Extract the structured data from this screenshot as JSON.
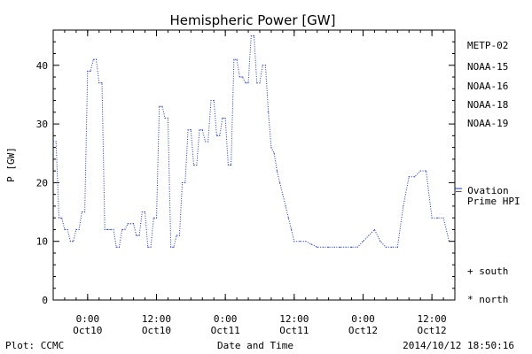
{
  "chart_data": {
    "type": "line",
    "title": "Hemispheric Power [GW]",
    "ylabel": "P [GW]",
    "xlabel": "Date and Time",
    "xlim": [
      "2014-10-09T18:00",
      "2014-10-12T16:00"
    ],
    "ylim": [
      0,
      46
    ],
    "y_ticks": [
      0,
      10,
      20,
      30,
      40
    ],
    "x_ticks": [
      {
        "t": "2014-10-10T00:00",
        "line1": "0:00",
        "line2": "Oct10"
      },
      {
        "t": "2014-10-10T12:00",
        "line1": "12:00",
        "line2": "Oct10"
      },
      {
        "t": "2014-10-11T00:00",
        "line1": "0:00",
        "line2": "Oct11"
      },
      {
        "t": "2014-10-11T12:00",
        "line1": "12:00",
        "line2": "Oct11"
      },
      {
        "t": "2014-10-12T00:00",
        "line1": "0:00",
        "line2": "Oct12"
      },
      {
        "t": "2014-10-12T12:00",
        "line1": "12:00",
        "line2": "Oct12"
      }
    ],
    "legend": {
      "placement": "right",
      "entries": [
        {
          "name": "METP-02",
          "color": "#000000"
        },
        {
          "name": "NOAA-15",
          "color": "#1a33c8"
        },
        {
          "name": "NOAA-16",
          "color": "#22b4d8"
        },
        {
          "name": "NOAA-18",
          "color": "#22cc77"
        },
        {
          "name": "NOAA-19",
          "color": "#ee9922"
        }
      ],
      "symbols": [
        {
          "label": "+ south"
        },
        {
          "label": "* north"
        }
      ]
    },
    "ovation": {
      "value": 19,
      "line1": "– Ovation",
      "line2": "Prime HPI",
      "color": "#1a33c8"
    },
    "series": [
      {
        "color": "#1a33c8",
        "x": [
          "2014-10-09T18:00",
          "2014-10-09T18:30",
          "2014-10-09T19:00",
          "2014-10-09T19:30",
          "2014-10-09T20:00",
          "2014-10-09T20:30",
          "2014-10-09T21:00",
          "2014-10-09T21:30",
          "2014-10-09T22:00",
          "2014-10-09T22:30",
          "2014-10-09T23:00",
          "2014-10-09T23:30",
          "2014-10-10T00:00",
          "2014-10-10T00:30",
          "2014-10-10T01:00",
          "2014-10-10T01:30",
          "2014-10-10T02:00",
          "2014-10-10T02:30",
          "2014-10-10T03:00",
          "2014-10-10T03:30",
          "2014-10-10T04:00",
          "2014-10-10T04:30",
          "2014-10-10T05:00",
          "2014-10-10T05:30",
          "2014-10-10T06:00",
          "2014-10-10T06:30",
          "2014-10-10T07:00",
          "2014-10-10T07:30",
          "2014-10-10T08:00",
          "2014-10-10T08:30",
          "2014-10-10T09:00",
          "2014-10-10T09:30",
          "2014-10-10T10:00",
          "2014-10-10T10:30",
          "2014-10-10T11:00",
          "2014-10-10T11:30",
          "2014-10-10T12:00",
          "2014-10-10T12:30",
          "2014-10-10T13:00",
          "2014-10-10T13:30",
          "2014-10-10T14:00",
          "2014-10-10T14:30",
          "2014-10-10T15:00",
          "2014-10-10T15:30",
          "2014-10-10T16:00",
          "2014-10-10T16:30",
          "2014-10-10T17:00",
          "2014-10-10T17:30",
          "2014-10-10T18:00",
          "2014-10-10T18:30",
          "2014-10-10T19:00",
          "2014-10-10T19:30",
          "2014-10-10T20:00",
          "2014-10-10T20:30",
          "2014-10-10T21:00",
          "2014-10-10T21:30",
          "2014-10-10T22:00",
          "2014-10-10T22:30",
          "2014-10-10T23:00",
          "2014-10-10T23:30",
          "2014-10-11T00:00",
          "2014-10-11T00:30",
          "2014-10-11T01:00",
          "2014-10-11T01:30",
          "2014-10-11T02:00",
          "2014-10-11T02:30",
          "2014-10-11T03:00",
          "2014-10-11T03:30",
          "2014-10-11T04:00",
          "2014-10-11T04:30",
          "2014-10-11T05:00",
          "2014-10-11T05:30",
          "2014-10-11T06:00",
          "2014-10-11T06:30",
          "2014-10-11T07:00",
          "2014-10-11T07:30",
          "2014-10-11T08:00",
          "2014-10-11T08:30",
          "2014-10-11T09:00",
          "2014-10-11T09:30",
          "2014-10-11T10:00",
          "2014-10-11T10:30",
          "2014-10-11T11:00",
          "2014-10-11T11:30",
          "2014-10-11T12:00",
          "2014-10-11T13:00",
          "2014-10-11T14:00",
          "2014-10-11T15:00",
          "2014-10-11T16:00",
          "2014-10-11T17:00",
          "2014-10-11T18:00",
          "2014-10-11T19:00",
          "2014-10-11T20:00",
          "2014-10-11T21:00",
          "2014-10-11T22:00",
          "2014-10-11T23:00",
          "2014-10-12T00:00",
          "2014-10-12T01:00",
          "2014-10-12T02:00",
          "2014-10-12T03:00",
          "2014-10-12T04:00",
          "2014-10-12T05:00",
          "2014-10-12T06:00",
          "2014-10-12T07:00",
          "2014-10-12T08:00",
          "2014-10-12T09:00",
          "2014-10-12T10:00",
          "2014-10-12T11:00",
          "2014-10-12T12:00",
          "2014-10-12T13:00",
          "2014-10-12T14:00",
          "2014-10-12T15:00"
        ],
        "y": [
          27,
          27,
          14,
          14,
          12,
          12,
          10,
          10,
          12,
          12,
          15,
          15,
          39,
          39,
          41,
          41,
          37,
          37,
          12,
          12,
          12,
          12,
          9,
          9,
          12,
          12,
          13,
          13,
          13,
          11,
          11,
          15,
          15,
          9,
          9,
          14,
          14,
          33,
          33,
          31,
          31,
          9,
          9,
          11,
          11,
          20,
          20,
          29,
          29,
          23,
          23,
          29,
          29,
          27,
          27,
          34,
          34,
          28,
          28,
          31,
          31,
          23,
          23,
          41,
          41,
          38,
          38,
          37,
          37,
          45,
          45,
          37,
          37,
          40,
          40,
          32,
          26,
          25,
          22,
          20,
          18,
          16,
          14,
          12,
          10,
          10,
          10,
          9.5,
          9,
          9,
          9,
          9,
          9,
          9,
          9,
          9,
          10,
          11,
          12,
          10,
          9,
          9,
          9,
          16,
          21,
          21,
          22,
          22,
          14,
          14,
          14,
          10
        ]
      }
    ]
  },
  "footer": {
    "left": "Plot: CCMC",
    "right": "2014/10/12 18:50:16"
  },
  "colors": {
    "axis": "#000000",
    "data": "#1a33c8"
  }
}
